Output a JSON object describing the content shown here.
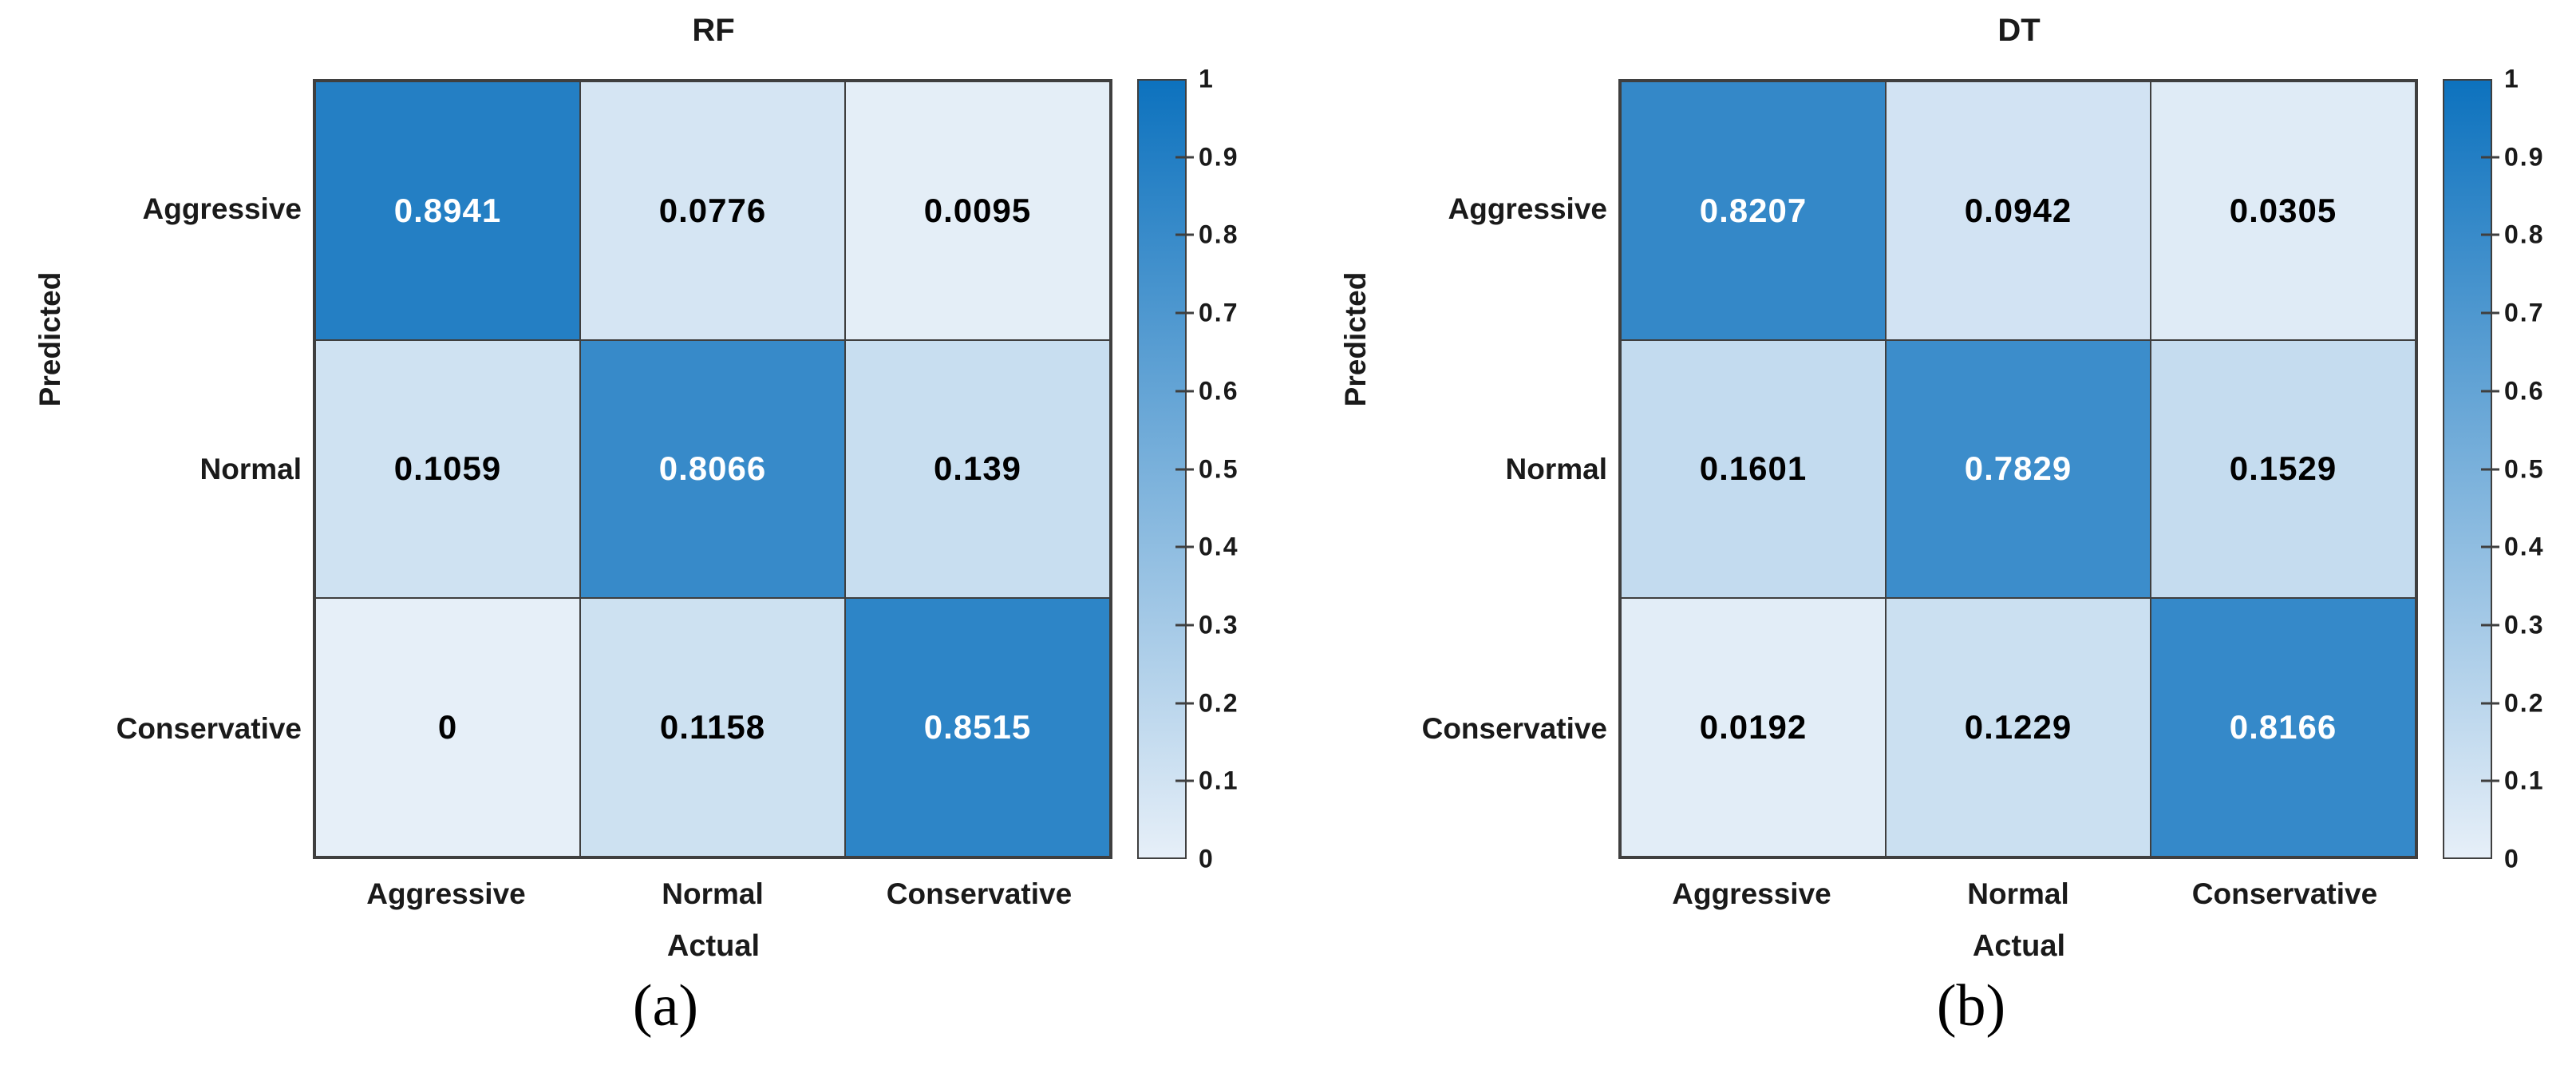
{
  "figure": {
    "background": "#ffffff"
  },
  "colors": {
    "colormap_low": "#e6eff8",
    "colormap_high": "#0d72be",
    "grid_line": "#3f3f3f",
    "cell_text_dark": "#000000",
    "cell_text_light": "#ffffff",
    "label_text": "#1a1a1a"
  },
  "captions": [
    "(a)",
    "(b)"
  ],
  "chart_data": [
    {
      "type": "heatmap",
      "title": "RF",
      "xlabel": "Actual",
      "ylabel": "Predicted",
      "x_categories": [
        "Aggressive",
        "Normal",
        "Conservative"
      ],
      "y_categories": [
        "Aggressive",
        "Normal",
        "Conservative"
      ],
      "values": [
        [
          0.8941,
          0.0776,
          0.0095
        ],
        [
          0.1059,
          0.8066,
          0.139
        ],
        [
          0,
          0.1158,
          0.8515
        ]
      ],
      "value_labels": [
        [
          "0.8941",
          "0.0776",
          "0.0095"
        ],
        [
          "0.1059",
          "0.8066",
          "0.139"
        ],
        [
          "0",
          "0.1158",
          "0.8515"
        ]
      ],
      "colorbar_ticks": [
        "1",
        "0.9",
        "0.8",
        "0.7",
        "0.6",
        "0.5",
        "0.4",
        "0.3",
        "0.2",
        "0.1",
        "0"
      ],
      "colorbar_range": [
        0,
        1
      ],
      "legend_position": "right-colorbar",
      "grid": "on"
    },
    {
      "type": "heatmap",
      "title": "DT",
      "xlabel": "Actual",
      "ylabel": "Predicted",
      "x_categories": [
        "Aggressive",
        "Normal",
        "Conservative"
      ],
      "y_categories": [
        "Aggressive",
        "Normal",
        "Conservative"
      ],
      "values": [
        [
          0.8207,
          0.0942,
          0.0305
        ],
        [
          0.1601,
          0.7829,
          0.1529
        ],
        [
          0.0192,
          0.1229,
          0.8166
        ]
      ],
      "value_labels": [
        [
          "0.8207",
          "0.0942",
          "0.0305"
        ],
        [
          "0.1601",
          "0.7829",
          "0.1529"
        ],
        [
          "0.0192",
          "0.1229",
          "0.8166"
        ]
      ],
      "colorbar_ticks": [
        "1",
        "0.9",
        "0.8",
        "0.7",
        "0.6",
        "0.5",
        "0.4",
        "0.3",
        "0.2",
        "0.1",
        "0"
      ],
      "colorbar_range": [
        0,
        1
      ],
      "legend_position": "right-colorbar",
      "grid": "on"
    }
  ]
}
